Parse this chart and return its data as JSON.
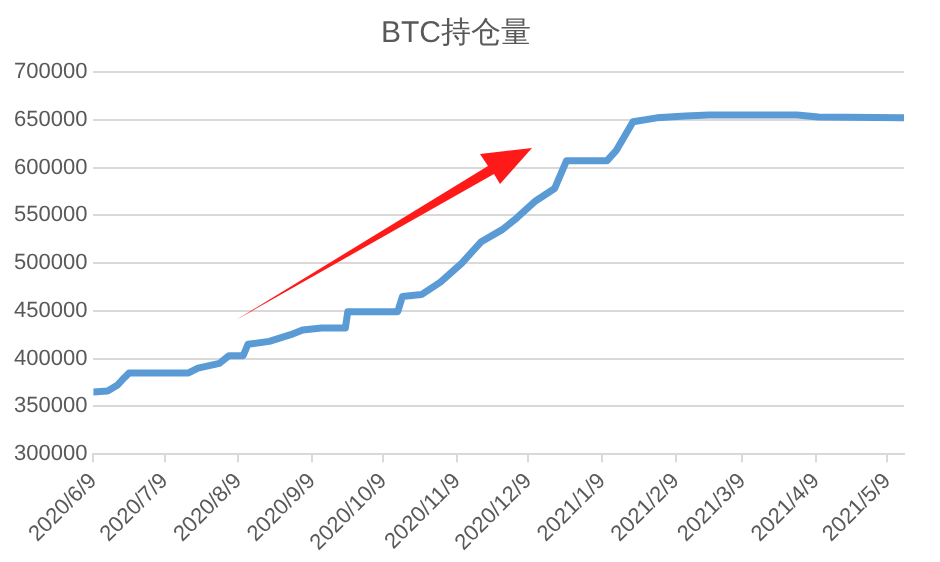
{
  "chart_data": {
    "type": "line",
    "title": "BTC持仓量",
    "x": [
      "2020-06-09",
      "2020-06-15",
      "2020-06-19",
      "2020-06-22",
      "2020-06-24",
      "2020-07-19",
      "2020-07-23",
      "2020-08-01",
      "2020-08-05",
      "2020-08-11",
      "2020-08-13",
      "2020-08-22",
      "2020-08-31",
      "2020-09-05",
      "2020-09-13",
      "2020-09-23",
      "2020-09-24",
      "2020-10-15",
      "2020-10-17",
      "2020-10-25",
      "2020-11-02",
      "2020-11-11",
      "2020-11-19",
      "2020-11-28",
      "2020-12-04",
      "2020-12-12",
      "2020-12-20",
      "2020-12-25",
      "2021-01-11",
      "2021-01-15",
      "2021-01-22",
      "2021-02-01",
      "2021-02-13",
      "2021-02-23",
      "2021-04-01",
      "2021-04-10",
      "2021-05-16"
    ],
    "series": [
      {
        "color": "#5b9bd5",
        "values": [
          365000,
          366000,
          372000,
          380000,
          385000,
          385000,
          390000,
          395000,
          403000,
          403000,
          415000,
          418000,
          425000,
          430000,
          432000,
          432000,
          449000,
          449000,
          465000,
          467000,
          480000,
          500000,
          522000,
          535000,
          547000,
          565000,
          578000,
          607000,
          607000,
          618000,
          648000,
          652000,
          654000,
          655000,
          655000,
          653000,
          652000
        ]
      }
    ],
    "ylim": [
      300000,
      700000
    ],
    "yticks": [
      300000,
      350000,
      400000,
      450000,
      500000,
      550000,
      600000,
      650000,
      700000
    ],
    "xlim": [
      "2020-06-09",
      "2021-05-16"
    ],
    "xticks": [
      {
        "value": "2020-06-09",
        "label": "2020/6/9"
      },
      {
        "value": "2020-07-09",
        "label": "2020/7/9"
      },
      {
        "value": "2020-08-09",
        "label": "2020/8/9"
      },
      {
        "value": "2020-09-09",
        "label": "2020/9/9"
      },
      {
        "value": "2020-10-09",
        "label": "2020/10/9"
      },
      {
        "value": "2020-11-09",
        "label": "2020/11/9"
      },
      {
        "value": "2020-12-09",
        "label": "2020/12/9"
      },
      {
        "value": "2021-01-09",
        "label": "2021/1/9"
      },
      {
        "value": "2021-02-09",
        "label": "2021/2/9"
      },
      {
        "value": "2021-03-09",
        "label": "2021/3/9"
      },
      {
        "value": "2021-04-09",
        "label": "2021/4/9"
      },
      {
        "value": "2021-05-09",
        "label": "2021/5/9"
      }
    ],
    "grid": "y",
    "legend": false,
    "marker": "none",
    "line_style": "solid"
  }
}
